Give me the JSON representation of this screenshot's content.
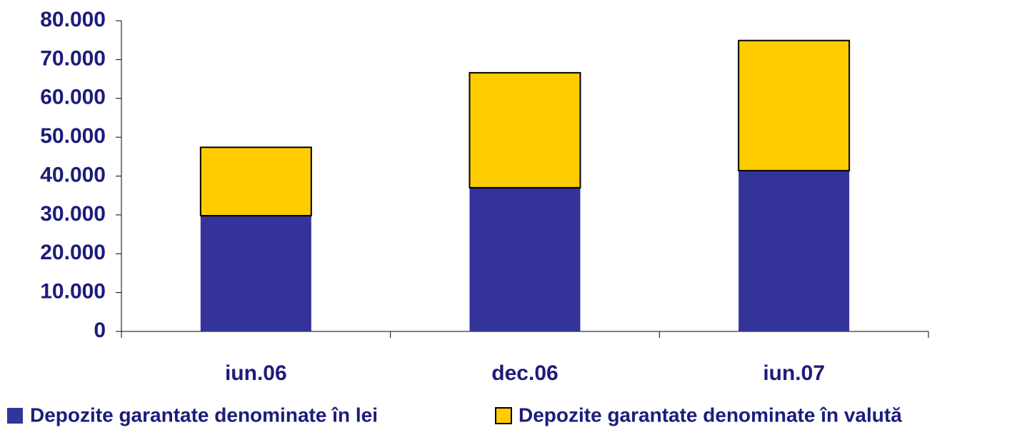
{
  "chart_data": {
    "type": "stacked_bar",
    "categories": [
      "iun.06",
      "dec.06",
      "iun.07"
    ],
    "series": [
      {
        "name": "Depozite garantate denominate în lei",
        "color": "#333399",
        "values": [
          29800,
          37000,
          41400
        ]
      },
      {
        "name": "Depozite garantate denominate în valută",
        "color": "#ffcc00",
        "values": [
          17600,
          29600,
          33500
        ]
      }
    ],
    "ylim": [
      0,
      80000
    ],
    "yticks": [
      0,
      {
        "value": 10000,
        "label": "10.000"
      },
      {
        "value": 20000,
        "label": "20.000"
      },
      {
        "value": 30000,
        "label": "30.000"
      },
      {
        "value": 40000,
        "label": "40.000"
      },
      {
        "value": 50000,
        "label": "50.000"
      },
      {
        "value": 60000,
        "label": "60.000"
      },
      {
        "value": 70000,
        "label": "70.000"
      },
      {
        "value": 80000,
        "label": "80.000"
      }
    ],
    "legend": "bottom"
  }
}
